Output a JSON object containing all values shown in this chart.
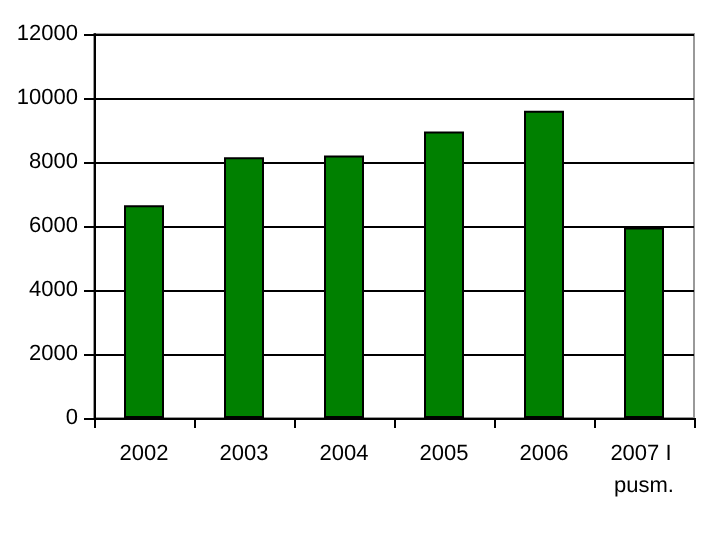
{
  "chart_data": {
    "type": "bar",
    "categories": [
      "2002",
      "2003",
      "2004",
      "2005",
      "2006",
      "2007 I pusm."
    ],
    "values": [
      6650,
      8150,
      8200,
      8950,
      9600,
      5950
    ],
    "color": "#008000",
    "ylim": [
      0,
      12000
    ],
    "yticks": [
      0,
      2000,
      4000,
      6000,
      8000,
      10000,
      12000
    ],
    "grid": "y"
  }
}
